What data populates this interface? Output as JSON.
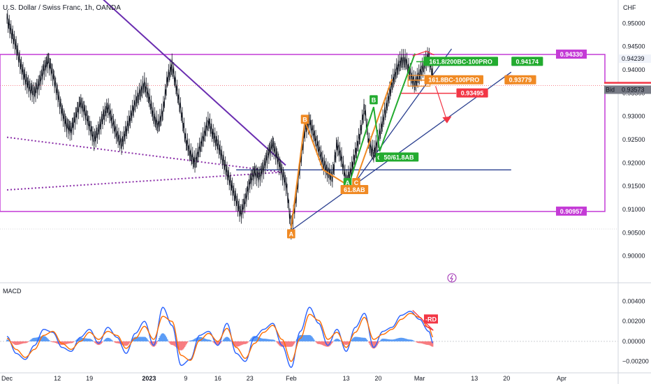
{
  "chart_data": {
    "type": "line",
    "title": "U.S. Dollar / Swiss Franc, 1h, OANDA",
    "currency": "CHF",
    "symbol": "USDCHF",
    "ylim": [
      0.895,
      0.955
    ],
    "y_ticks": [
      0.95,
      0.945,
      0.94,
      0.935,
      0.93,
      0.925,
      0.92,
      0.915,
      0.91,
      0.905,
      0.9
    ],
    "x_ticks": [
      "Dec",
      "12",
      "19",
      "2023",
      "9",
      "16",
      "23",
      "Feb",
      "13",
      "20",
      "Mar",
      "13",
      "20",
      "Apr"
    ],
    "x_tick_days": [
      0,
      11,
      18,
      31,
      39,
      46,
      53,
      62,
      74,
      81,
      90,
      102,
      109,
      121
    ],
    "x_range_days": [
      0,
      123
    ],
    "series": [
      {
        "color": "#131722",
        "x": [
          0,
          1,
          2,
          3,
          4,
          5,
          6,
          7,
          8,
          9,
          10,
          11,
          12,
          13,
          14,
          15,
          16,
          17,
          18,
          19,
          20,
          21,
          22,
          23,
          24,
          25,
          26,
          27,
          28,
          29,
          30,
          31,
          32,
          33,
          34,
          35,
          36,
          37,
          38,
          39,
          40,
          41,
          42,
          43,
          44,
          45,
          46,
          47,
          48,
          49,
          50,
          51,
          52,
          53,
          54,
          55,
          56,
          57,
          58,
          59,
          60,
          61,
          62,
          63,
          64,
          65,
          66,
          67,
          68,
          69,
          70,
          71,
          72,
          73,
          74,
          75,
          76,
          77,
          78,
          79,
          80,
          81,
          82,
          83,
          84,
          85,
          86,
          87,
          88,
          89,
          90,
          91,
          92,
          93
        ],
        "y": [
          0.951,
          0.948,
          0.945,
          0.941,
          0.938,
          0.936,
          0.935,
          0.937,
          0.94,
          0.942,
          0.939,
          0.935,
          0.931,
          0.928,
          0.927,
          0.93,
          0.933,
          0.931,
          0.928,
          0.925,
          0.927,
          0.93,
          0.932,
          0.929,
          0.926,
          0.924,
          0.927,
          0.93,
          0.933,
          0.935,
          0.937,
          0.934,
          0.93,
          0.928,
          0.931,
          0.938,
          0.941,
          0.936,
          0.931,
          0.925,
          0.922,
          0.92,
          0.923,
          0.926,
          0.929,
          0.926,
          0.924,
          0.921,
          0.918,
          0.915,
          0.912,
          0.909,
          0.912,
          0.916,
          0.918,
          0.917,
          0.919,
          0.922,
          0.924,
          0.921,
          0.918,
          0.915,
          0.906,
          0.912,
          0.92,
          0.927,
          0.929,
          0.926,
          0.923,
          0.92,
          0.918,
          0.917,
          0.924,
          0.921,
          0.916,
          0.918,
          0.922,
          0.926,
          0.932,
          0.924,
          0.922,
          0.925,
          0.929,
          0.933,
          0.937,
          0.94,
          0.942,
          0.942,
          0.939,
          0.937,
          0.939,
          0.941,
          0.943,
          0.938
        ]
      }
    ],
    "macd": {
      "label": "MACD",
      "ylim": [
        -0.003,
        0.0055
      ],
      "y_ticks": [
        0.004,
        0.002,
        0.0,
        -0.002
      ],
      "y_tick_labels": [
        "0.00400",
        "0.00200",
        "0.00000",
        "−0.00200"
      ],
      "x": [
        0,
        2,
        4,
        6,
        8,
        10,
        12,
        14,
        16,
        18,
        20,
        22,
        24,
        26,
        28,
        30,
        32,
        34,
        36,
        38,
        40,
        42,
        44,
        46,
        48,
        50,
        52,
        54,
        56,
        58,
        60,
        62,
        64,
        66,
        68,
        70,
        72,
        74,
        76,
        78,
        80,
        82,
        84,
        86,
        88,
        90,
        92,
        93
      ],
      "macd": [
        0.0005,
        -0.0012,
        -0.0018,
        -0.0004,
        0.0012,
        0.0009,
        -0.0006,
        -0.001,
        0.0004,
        0.0012,
        -0.0002,
        0.0014,
        0.0004,
        -0.0012,
        0.0008,
        0.002,
        -0.0004,
        0.0034,
        0.0016,
        -0.0024,
        -0.0018,
        0.0006,
        0.001,
        -0.0004,
        0.0018,
        -0.0012,
        -0.002,
        0.0004,
        0.0012,
        0.0018,
        -0.0004,
        -0.0026,
        0.001,
        0.0034,
        0.0018,
        -0.0004,
        0.0012,
        -0.001,
        0.0014,
        0.0028,
        -0.0006,
        0.001,
        0.0014,
        0.0026,
        0.003,
        0.0022,
        0.001,
        -0.0002
      ],
      "signal": [
        0.0003,
        -0.0008,
        -0.0016,
        -0.0008,
        0.0006,
        0.001,
        -0.0002,
        -0.0008,
        0.0,
        0.0009,
        0.0002,
        0.001,
        0.0006,
        -0.0007,
        0.0003,
        0.0015,
        0.0002,
        0.0025,
        0.002,
        -0.0014,
        -0.0019,
        0.0001,
        0.0008,
        0.0,
        0.0013,
        -0.0006,
        -0.0017,
        -0.0002,
        0.0009,
        0.0016,
        0.0002,
        -0.002,
        0.0003,
        0.0027,
        0.0021,
        0.0002,
        0.0009,
        -0.0006,
        0.0009,
        0.0024,
        0.0002,
        0.0007,
        0.0012,
        0.0022,
        0.0028,
        0.0024,
        0.0014,
        0.0004
      ]
    },
    "hlines": [
      {
        "y": 0.9433,
        "label": "0.94330",
        "color": "#c43bd6"
      },
      {
        "y": 0.90957,
        "label": "0.90957",
        "color": "#c43bd6"
      }
    ],
    "price_tags": [
      {
        "label": "0.94239",
        "bg": "#f0f3fa",
        "fg": "#131722",
        "y": 0.94239
      },
      {
        "label": "Ask",
        "value": "0.93650",
        "bg": "#f23645",
        "fg": "#ffffff",
        "y": 0.9365
      },
      {
        "label": "USDCHF",
        "value": "0.93612",
        "bg": "#ffffff",
        "fg": "#131722",
        "y": 0.93612
      },
      {
        "label": "Bid",
        "value": "0.93573",
        "bg": "#787b86",
        "fg": "#ffffff",
        "y": 0.93573
      }
    ],
    "annotations": [
      {
        "text": "A",
        "color": "#f08a24",
        "x": 62,
        "y": 0.9047
      },
      {
        "text": "B",
        "color": "#f08a24",
        "x": 65,
        "y": 0.9293
      },
      {
        "text": "A",
        "color": "#22ab2f",
        "x": 74.3,
        "y": 0.9157
      },
      {
        "text": "C",
        "color": "#f08a24",
        "x": 76.2,
        "y": 0.9157
      },
      {
        "text": "61.8AB",
        "color": "#f08a24",
        "x": 75.8,
        "y": 0.9142
      },
      {
        "text": "B",
        "color": "#22ab2f",
        "x": 80,
        "y": 0.9335
      },
      {
        "text": "C",
        "color": "#22ab2f",
        "x": 81.3,
        "y": 0.9211
      },
      {
        "text": "50/61.8AB",
        "color": "#22ab2f",
        "x": 85.5,
        "y": 0.9212
      },
      {
        "text": "161.8/200BC-100PRO",
        "color": "#22ab2f",
        "x": 99,
        "y": 0.94174
      },
      {
        "text": "D",
        "color": "#2962ff",
        "x": 111,
        "y": 0.94174
      },
      {
        "text": "0.94174",
        "color": "#22ab2f",
        "x": 113.5,
        "y": 0.94174
      },
      {
        "text": "161.8BC-100PRO",
        "color": "#f08a24",
        "x": 97.5,
        "y": 0.93779
      },
      {
        "text": "D",
        "color": "#f23645",
        "x": 109.5,
        "y": 0.93779
      },
      {
        "text": "0.93779",
        "color": "#f08a24",
        "x": 112,
        "y": 0.93779
      },
      {
        "text": "0.93495",
        "color": "#f23645",
        "x": 101.5,
        "y": 0.93495
      },
      {
        "text": "-RD",
        "color": "#f23645",
        "x": 92.5,
        "y": 0.0022
      }
    ]
  }
}
